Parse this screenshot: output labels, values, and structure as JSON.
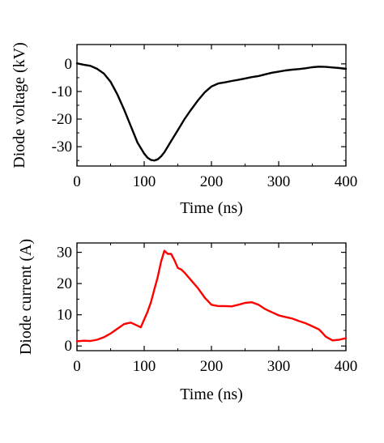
{
  "chart_data": [
    {
      "type": "line",
      "xlabel": "Time (ns)",
      "ylabel": "Diode voltage (kV)",
      "xlim": [
        0,
        400
      ],
      "ylim": [
        -37,
        7
      ],
      "xticks": [
        0,
        100,
        200,
        300,
        400
      ],
      "yticks": [
        0,
        -10,
        -20,
        -30
      ],
      "grid": false,
      "series": [
        {
          "color": "#000000",
          "x": [
            0,
            10,
            20,
            30,
            40,
            50,
            60,
            70,
            80,
            90,
            100,
            105,
            110,
            115,
            120,
            125,
            130,
            140,
            150,
            160,
            170,
            180,
            190,
            200,
            210,
            220,
            230,
            240,
            250,
            260,
            270,
            280,
            290,
            300,
            310,
            320,
            330,
            340,
            350,
            360,
            370,
            380,
            390,
            400
          ],
          "values": [
            0.2,
            -0.3,
            -0.7,
            -1.8,
            -3.5,
            -6.5,
            -11,
            -16.5,
            -22.5,
            -28.5,
            -32.5,
            -34,
            -34.8,
            -35,
            -34.6,
            -33.5,
            -32,
            -28,
            -24,
            -20,
            -16.5,
            -13.2,
            -10.3,
            -8.2,
            -7.1,
            -6.7,
            -6.2,
            -5.8,
            -5.3,
            -4.8,
            -4.4,
            -3.8,
            -3.2,
            -2.8,
            -2.4,
            -2.1,
            -1.9,
            -1.6,
            -1.2,
            -1.0,
            -1.1,
            -1.3,
            -1.5,
            -1.8
          ]
        }
      ]
    },
    {
      "type": "line",
      "xlabel": "Time (ns)",
      "ylabel": "Diode current (A)",
      "xlim": [
        0,
        400
      ],
      "ylim": [
        -1.5,
        33
      ],
      "xticks": [
        0,
        100,
        200,
        300,
        400
      ],
      "yticks": [
        0,
        10,
        20,
        30
      ],
      "grid": false,
      "series": [
        {
          "color": "#ff0000",
          "x": [
            0,
            10,
            20,
            30,
            40,
            50,
            60,
            70,
            80,
            90,
            95,
            100,
            105,
            110,
            115,
            120,
            125,
            130,
            135,
            140,
            145,
            150,
            155,
            160,
            170,
            180,
            190,
            200,
            210,
            220,
            230,
            240,
            250,
            260,
            270,
            280,
            290,
            300,
            310,
            320,
            330,
            340,
            350,
            360,
            365,
            370,
            380,
            390,
            400
          ],
          "values": [
            1.5,
            1.7,
            1.6,
            2.0,
            2.8,
            4.0,
            5.5,
            7.0,
            7.5,
            6.5,
            6.0,
            8.5,
            11,
            14,
            18,
            22,
            27,
            30.5,
            29.5,
            29.5,
            27.5,
            25,
            24.5,
            23.5,
            21,
            18.5,
            15.5,
            13.2,
            12.8,
            12.8,
            12.7,
            13.2,
            13.8,
            14,
            13.2,
            11.8,
            10.8,
            9.8,
            9.3,
            8.8,
            8.0,
            7.3,
            6.3,
            5.3,
            4.2,
            3.0,
            1.8,
            2.0,
            2.5
          ]
        }
      ]
    }
  ]
}
